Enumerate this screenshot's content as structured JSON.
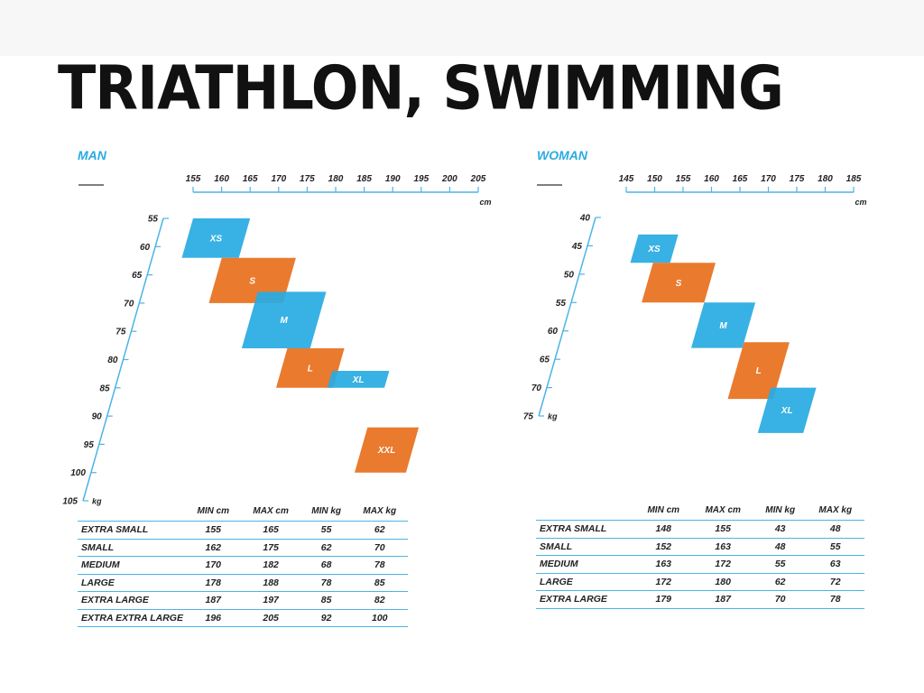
{
  "title": "TRIATHLON, SWIMMING",
  "colors": {
    "blue": "#29abe2",
    "orange": "#e8701e",
    "axis": "#4db3e6",
    "text": "#222222"
  },
  "chart_data": [
    {
      "type": "table",
      "name": "MAN",
      "x_unit": "cm",
      "y_unit": "kg",
      "x_ticks": [
        155,
        160,
        165,
        170,
        175,
        180,
        185,
        190,
        195,
        200,
        205
      ],
      "y_ticks": [
        55,
        60,
        65,
        70,
        75,
        80,
        85,
        90,
        95,
        100,
        105
      ],
      "columns": [
        "MIN cm",
        "MAX cm",
        "MIN kg",
        "MAX kg"
      ],
      "rows": [
        {
          "size": "EXTRA SMALL",
          "label": "XS",
          "min_cm": 155,
          "max_cm": 165,
          "min_kg": 55,
          "max_kg": 62
        },
        {
          "size": "SMALL",
          "label": "S",
          "min_cm": 162,
          "max_cm": 175,
          "min_kg": 62,
          "max_kg": 70
        },
        {
          "size": "MEDIUM",
          "label": "M",
          "min_cm": 170,
          "max_cm": 182,
          "min_kg": 68,
          "max_kg": 78
        },
        {
          "size": "LARGE",
          "label": "L",
          "min_cm": 178,
          "max_cm": 188,
          "min_kg": 78,
          "max_kg": 85
        },
        {
          "size": "EXTRA LARGE",
          "label": "XL",
          "min_cm": 187,
          "max_cm": 197,
          "min_kg": 85,
          "max_kg": 82
        },
        {
          "size": "EXTRA EXTRA LARGE",
          "label": "XXL",
          "min_cm": 196,
          "max_cm": 205,
          "min_kg": 92,
          "max_kg": 100
        }
      ]
    },
    {
      "type": "table",
      "name": "WOMAN",
      "x_unit": "cm",
      "y_unit": "kg",
      "x_ticks": [
        145,
        150,
        155,
        160,
        165,
        170,
        175,
        180,
        185
      ],
      "y_ticks": [
        40,
        45,
        50,
        55,
        60,
        65,
        70,
        75
      ],
      "columns": [
        "MIN cm",
        "MAX cm",
        "MIN kg",
        "MAX kg"
      ],
      "rows": [
        {
          "size": "EXTRA SMALL",
          "label": "XS",
          "min_cm": 148,
          "max_cm": 155,
          "min_kg": 43,
          "max_kg": 48
        },
        {
          "size": "SMALL",
          "label": "S",
          "min_cm": 152,
          "max_cm": 163,
          "min_kg": 48,
          "max_kg": 55
        },
        {
          "size": "MEDIUM",
          "label": "M",
          "min_cm": 163,
          "max_cm": 172,
          "min_kg": 55,
          "max_kg": 63
        },
        {
          "size": "LARGE",
          "label": "L",
          "min_cm": 172,
          "max_cm": 180,
          "min_kg": 62,
          "max_kg": 72
        },
        {
          "size": "EXTRA LARGE",
          "label": "XL",
          "min_cm": 179,
          "max_cm": 187,
          "min_kg": 70,
          "max_kg": 78
        }
      ]
    }
  ]
}
